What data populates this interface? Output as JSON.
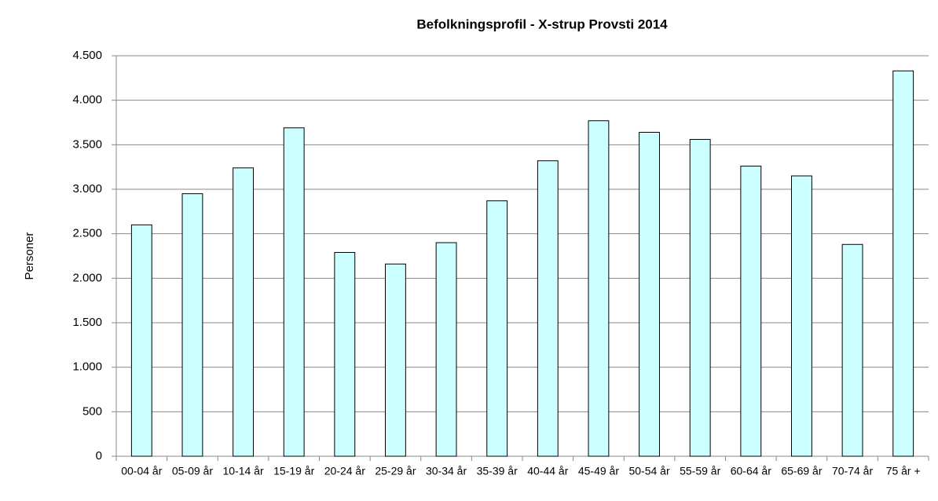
{
  "chart_data": {
    "type": "bar",
    "title": "Befolkningsprofil  - X-strup Provsti 2014",
    "y_label": "Personer",
    "categories": [
      "00-04 år",
      "05-09 år",
      "10-14 år",
      "15-19 år",
      "20-24 år",
      "25-29 år",
      "30-34 år",
      "35-39 år",
      "40-44 år",
      "45-49 år",
      "50-54 år",
      "55-59 år",
      "60-64 år",
      "65-69 år",
      "70-74 år",
      "75 år +"
    ],
    "values": [
      2600,
      2950,
      3240,
      3690,
      2290,
      2160,
      2400,
      2870,
      3320,
      3770,
      3640,
      3560,
      3260,
      3150,
      2380,
      4330
    ],
    "color": "#ccffff",
    "ylim": [
      0,
      4500
    ],
    "yticks": [
      0,
      500,
      {
        "value": 1000,
        "label": "1.000"
      },
      {
        "value": 1500,
        "label": "1.500"
      },
      {
        "value": 2000,
        "label": "2.000"
      },
      {
        "value": 2500,
        "label": "2.500"
      },
      {
        "value": 3000,
        "label": "3.000"
      },
      {
        "value": 3500,
        "label": "3.500"
      },
      {
        "value": 4000,
        "label": "4.000"
      },
      {
        "value": 4500,
        "label": "4.500"
      }
    ],
    "grid": true
  }
}
